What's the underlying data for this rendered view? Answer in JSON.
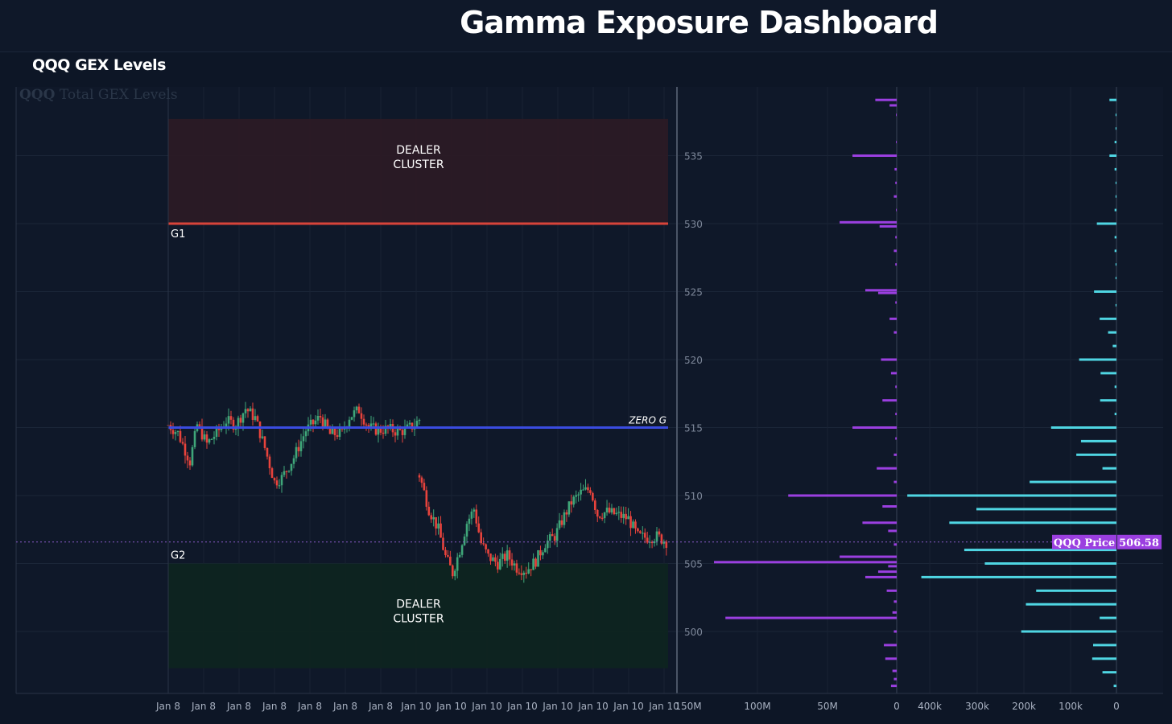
{
  "header": {
    "title": "Gamma Exposure Dashboard"
  },
  "panel": {
    "title": "QQQ GEX Levels",
    "watermark_ticker": "QQQ",
    "watermark_text": "Total GEX Levels"
  },
  "colors": {
    "background": "#0d1626",
    "up": "#3fa679",
    "down": "#e8433c",
    "zero_gamma": "#3a4ce0",
    "g1_line": "#d7443a",
    "call_cluster": "#2b1a25",
    "put_cluster": "#0e2420",
    "gex_purple": "#9b3fe0",
    "gex_cyan": "#4fd6e3",
    "price_tag": "#9b3fe0"
  },
  "chart_data": [
    {
      "type": "candlestick",
      "x_tick_labels": [
        "Jan 8",
        "Jan 8",
        "Jan 8",
        "Jan 8",
        "Jan 8",
        "Jan 8",
        "Jan 8",
        "Jan 10",
        "Jan 10",
        "Jan 10",
        "Jan 10",
        "Jan 10",
        "Jan 10",
        "Jan 10",
        "Jan 10"
      ],
      "ylim": [
        497,
        540
      ],
      "y_ticks": [
        500,
        505,
        510,
        515,
        520,
        525,
        530,
        535
      ],
      "levels": [
        {
          "label": "G1",
          "value": 530
        },
        {
          "label": "ZERO G",
          "value": 515
        },
        {
          "label": "G2",
          "value": 505
        }
      ],
      "zones": [
        {
          "label_line1": "DEALER",
          "label_line2": "CLUSTER",
          "from": 530,
          "to": 537.7
        },
        {
          "label_line1": "DEALER",
          "label_line2": "CLUSTER",
          "from": 497.3,
          "to": 505
        }
      ],
      "current_price": {
        "label": "QQQ Price",
        "value": 506.58,
        "display": "506.58"
      },
      "session1": {
        "anchors": [
          [
            0,
            515.2
          ],
          [
            4,
            514.6
          ],
          [
            9,
            512.5
          ],
          [
            12,
            515.2
          ],
          [
            16,
            513.8
          ],
          [
            20,
            514.6
          ],
          [
            24,
            515.5
          ],
          [
            28,
            515.2
          ],
          [
            32,
            516.4
          ],
          [
            36,
            515.7
          ],
          [
            40,
            513.5
          ],
          [
            44,
            511
          ],
          [
            47,
            511.3
          ],
          [
            52,
            512.8
          ],
          [
            57,
            514.8
          ],
          [
            63,
            515.8
          ],
          [
            67,
            514.5
          ],
          [
            72,
            514.6
          ],
          [
            75,
            515.8
          ],
          [
            79,
            516.3
          ],
          [
            83,
            515
          ],
          [
            87,
            514.8
          ],
          [
            91,
            514.9
          ],
          [
            95,
            514.7
          ],
          [
            98,
            514.8
          ],
          [
            102,
            515.2
          ],
          [
            104,
            515.6
          ]
        ]
      },
      "session2": {
        "anchors": [
          [
            0,
            511.5
          ],
          [
            4,
            509
          ],
          [
            8,
            507.5
          ],
          [
            11,
            505.5
          ],
          [
            14,
            504.3
          ],
          [
            17,
            506
          ],
          [
            20,
            508
          ],
          [
            23,
            509
          ],
          [
            26,
            506.5
          ],
          [
            29,
            505.5
          ],
          [
            33,
            505
          ],
          [
            37,
            505.6
          ],
          [
            41,
            504.7
          ],
          [
            45,
            504.5
          ],
          [
            49,
            505.2
          ],
          [
            53,
            506.5
          ],
          [
            57,
            507
          ],
          [
            61,
            508.5
          ],
          [
            64,
            509.5
          ],
          [
            68,
            510.2
          ],
          [
            72,
            510.5
          ],
          [
            75,
            508.6
          ],
          [
            79,
            508.8
          ],
          [
            83,
            508.6
          ],
          [
            88,
            508.3
          ],
          [
            92,
            507
          ],
          [
            96,
            506.9
          ],
          [
            100,
            507
          ],
          [
            104,
            506.6
          ]
        ]
      }
    },
    {
      "type": "bar",
      "orientation": "horizontal",
      "title": "",
      "x_tick_labels": [
        "150M",
        "100M",
        "50M",
        "0"
      ],
      "strikes": [
        539,
        538,
        537,
        536,
        535,
        534,
        533,
        532,
        531,
        530,
        529,
        528,
        527,
        526,
        525,
        524,
        523,
        522,
        521,
        520,
        519,
        518,
        517,
        516,
        515,
        514,
        513,
        512,
        511,
        510,
        509,
        508,
        507,
        506,
        505,
        504,
        503,
        502,
        501,
        500,
        499,
        498,
        497
      ],
      "values_m": [
        15,
        5,
        0.5,
        0.5,
        31,
        1.5,
        1,
        2,
        0.5,
        40,
        12,
        1,
        2,
        1,
        22,
        13,
        1,
        5,
        2,
        11,
        4,
        1,
        10,
        1,
        31,
        1,
        2,
        14,
        2,
        76,
        10,
        24,
        6,
        2,
        40,
        128,
        6,
        13,
        22,
        7,
        2,
        3,
        120,
        2,
        9,
        8,
        3,
        2,
        4
      ],
      "bar_strikes": [
        539.1,
        538.7,
        538,
        536,
        535,
        534,
        533,
        532,
        531,
        530.1,
        529.8,
        529,
        528,
        527,
        525.1,
        524.9,
        524.2,
        523,
        522,
        520,
        519,
        518,
        517,
        516,
        515,
        514.2,
        513,
        512,
        511,
        510,
        509.2,
        508,
        507.4,
        506.4,
        505.5,
        505.1,
        504.8,
        504.4,
        504,
        503,
        502.2,
        501.4,
        501,
        500,
        499,
        498,
        497.1,
        496.5,
        496
      ]
    },
    {
      "type": "bar",
      "orientation": "horizontal",
      "x_tick_labels": [
        "400k",
        "300k",
        "200k",
        "100k",
        "0"
      ],
      "bar_strikes": [
        539.1,
        538,
        537,
        536,
        535,
        534,
        533,
        532,
        531,
        530,
        529,
        528,
        527,
        526,
        525,
        524,
        523,
        522,
        521,
        520,
        519,
        518,
        517,
        516,
        515,
        514,
        513,
        512,
        511,
        510,
        509,
        508,
        507,
        506,
        505,
        504,
        503,
        502,
        501,
        500,
        499,
        498,
        497,
        496
      ],
      "values_k": [
        15,
        2,
        2,
        4,
        15,
        4,
        2,
        2,
        4,
        42,
        4,
        4,
        2,
        2,
        48,
        2,
        36,
        18,
        8,
        80,
        34,
        4,
        35,
        4,
        140,
        76,
        86,
        30,
        186,
        448,
        300,
        358,
        118,
        326,
        282,
        418,
        172,
        194,
        36,
        204,
        50,
        52,
        30,
        6
      ]
    }
  ]
}
